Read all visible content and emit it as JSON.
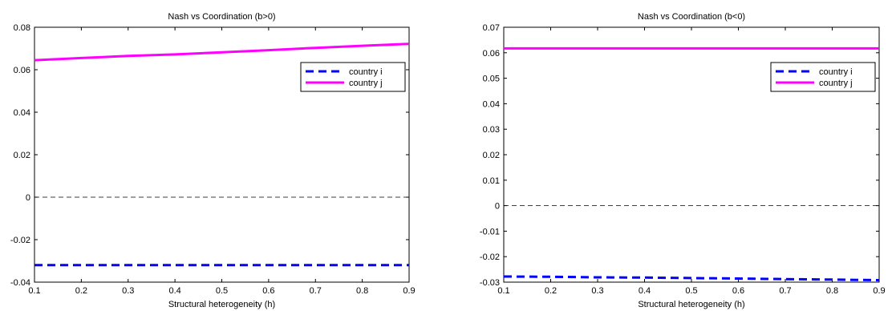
{
  "chart_data": [
    {
      "type": "line",
      "title": "Nash vs Coordination (b>0)",
      "xlabel": "Structural heterogeneity (h)",
      "ylabel": "",
      "xlim": [
        0.1,
        0.9
      ],
      "ylim": [
        -0.04,
        0.08
      ],
      "xticks": [
        "0.1",
        "0.2",
        "0.3",
        "0.4",
        "0.5",
        "0.6",
        "0.7",
        "0.8",
        "0.9"
      ],
      "yticks": [
        "-0.04",
        "-0.02",
        "0",
        "0.02",
        "0.04",
        "0.06",
        "0.08"
      ],
      "x": [
        0.1,
        0.2,
        0.3,
        0.4,
        0.5,
        0.6,
        0.7,
        0.8,
        0.9
      ],
      "series": [
        {
          "name": "country i",
          "color": "#0000ff",
          "style": "dashed",
          "values": [
            -0.032,
            -0.032,
            -0.032,
            -0.032,
            -0.032,
            -0.032,
            -0.032,
            -0.032,
            -0.032
          ]
        },
        {
          "name": "country j",
          "color": "#ff00ff",
          "style": "solid",
          "values": [
            0.0645,
            0.0655,
            0.0665,
            0.0672,
            0.0682,
            0.0692,
            0.0703,
            0.0713,
            0.0722
          ]
        }
      ],
      "reference_line": 0,
      "legend_position": "top-right",
      "grid": false
    },
    {
      "type": "line",
      "title": "Nash vs Coordination (b<0)",
      "xlabel": "Structural heterogeneity (h)",
      "ylabel": "",
      "xlim": [
        0.1,
        0.9
      ],
      "ylim": [
        -0.03,
        0.07
      ],
      "xticks": [
        "0.1",
        "0.2",
        "0.3",
        "0.4",
        "0.5",
        "0.6",
        "0.7",
        "0.8",
        "0.9"
      ],
      "yticks": [
        "-0.03",
        "-0.02",
        "-0.01",
        "0",
        "0.01",
        "0.02",
        "0.03",
        "0.04",
        "0.05",
        "0.06",
        "0.07"
      ],
      "x": [
        0.1,
        0.2,
        0.3,
        0.4,
        0.5,
        0.6,
        0.7,
        0.8,
        0.9
      ],
      "series": [
        {
          "name": "country i",
          "color": "#0000ff",
          "style": "dashed",
          "values": [
            -0.0278,
            -0.0279,
            -0.0281,
            -0.0282,
            -0.0284,
            -0.0286,
            -0.0288,
            -0.029,
            -0.0292
          ]
        },
        {
          "name": "country j",
          "color": "#ff00ff",
          "style": "solid",
          "values": [
            0.0617,
            0.0617,
            0.0617,
            0.0617,
            0.0617,
            0.0617,
            0.0617,
            0.0617,
            0.0617
          ]
        }
      ],
      "reference_line": 0,
      "legend_position": "top-right",
      "grid": false
    }
  ]
}
